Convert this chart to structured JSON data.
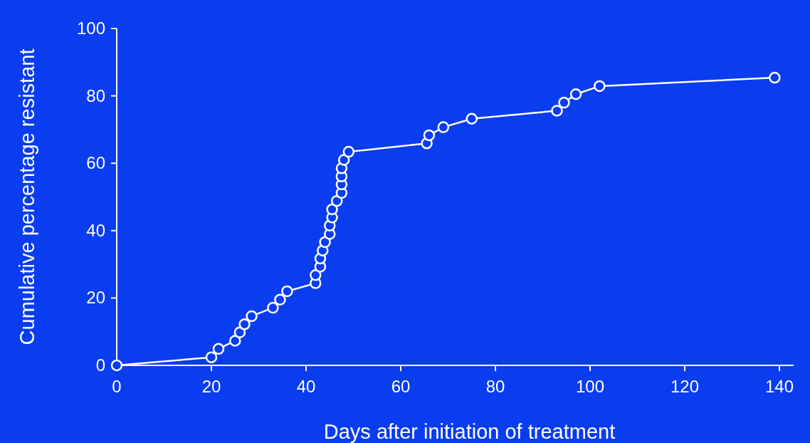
{
  "chart_data": {
    "type": "line",
    "xlabel": "Days after initiation of treatment",
    "ylabel": "Cumulative percentage resistant",
    "x": [
      0,
      20,
      21.5,
      25,
      26,
      27,
      28.5,
      33,
      34.5,
      36,
      42,
      42,
      43,
      43,
      43.5,
      44,
      45,
      45,
      45.5,
      45.5,
      46.5,
      47.5,
      47.5,
      47.5,
      47.5,
      48,
      49,
      65.5,
      66,
      69,
      75,
      93,
      94.5,
      97,
      102,
      139
    ],
    "series": [
      {
        "color": "#ffffff",
        "values": [
          0,
          2.4,
          4.9,
          7.3,
          9.8,
          12.2,
          14.6,
          17.1,
          19.5,
          22,
          24.4,
          26.8,
          29.3,
          31.7,
          34.1,
          36.6,
          39,
          41.5,
          43.9,
          46.3,
          48.8,
          51.2,
          53.7,
          56.1,
          58.5,
          61,
          63.4,
          65.9,
          68.3,
          70.7,
          73.2,
          75.6,
          78,
          80.5,
          82.9,
          85.4
        ]
      }
    ],
    "xlim": [
      0,
      143
    ],
    "xticks": [
      0,
      20,
      40,
      60,
      80,
      100,
      120,
      140
    ],
    "ylim": [
      0,
      100
    ],
    "yticks": [
      0,
      20,
      40,
      60,
      80,
      100
    ],
    "marker": "circle",
    "line_style": "solid",
    "grid": false
  }
}
